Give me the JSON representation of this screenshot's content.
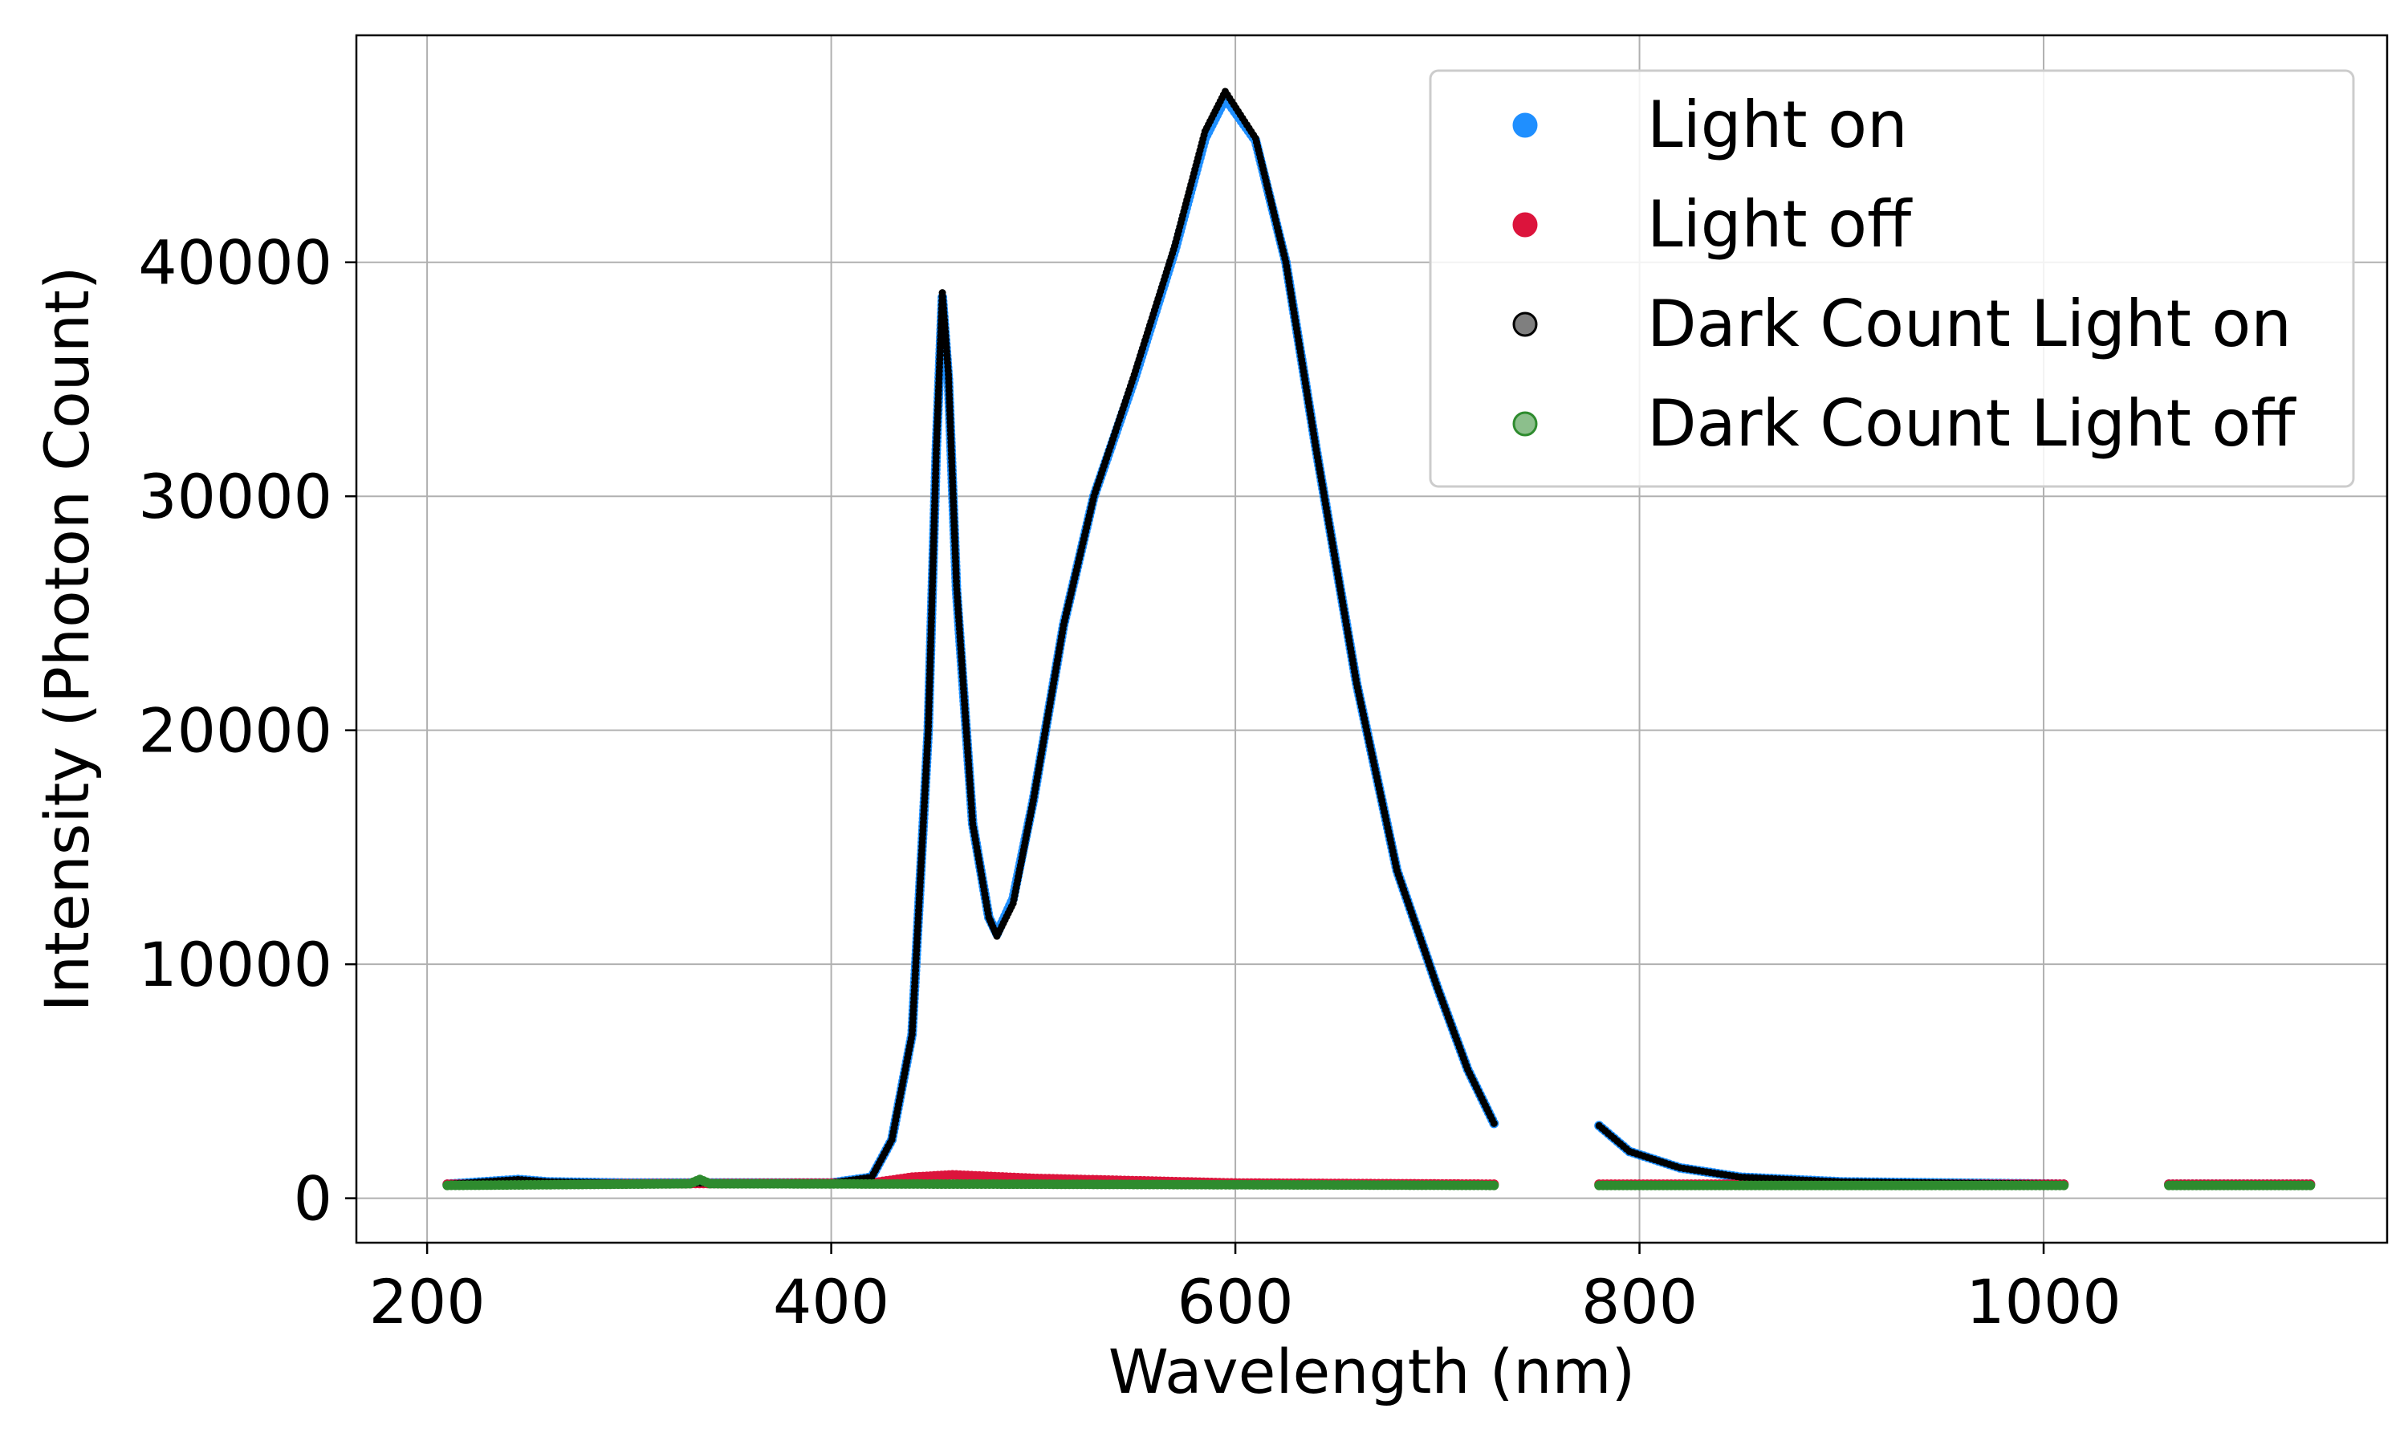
{
  "chart_data": {
    "type": "scatter",
    "xlabel": "Wavelength (nm)",
    "ylabel": "Intensity (Photon Count)",
    "xlim": [
      165,
      1170
    ],
    "ylim": [
      -1900,
      49700
    ],
    "xticks": [
      200,
      400,
      600,
      800,
      1000
    ],
    "yticks": [
      0,
      10000,
      20000,
      30000,
      40000
    ],
    "xtick_labels": [
      "200",
      "400",
      "600",
      "800",
      "1000"
    ],
    "ytick_labels": [
      "0",
      "10000",
      "20000",
      "30000",
      "40000"
    ],
    "grid": true,
    "legend_position": "top-right",
    "series": [
      {
        "name": "Light on",
        "color": "#1f8fff",
        "segments": [
          [
            [
              210,
              600
            ],
            [
              245,
              800
            ],
            [
              260,
              700
            ],
            [
              300,
              650
            ],
            [
              400,
              650
            ],
            [
              420,
              900
            ],
            [
              430,
              2500
            ],
            [
              440,
              7000
            ],
            [
              448,
              20000
            ],
            [
              452,
              32000
            ],
            [
              455,
              38500
            ],
            [
              458,
              35000
            ],
            [
              462,
              26000
            ],
            [
              470,
              16000
            ],
            [
              478,
              12000
            ],
            [
              482,
              11300
            ],
            [
              490,
              12800
            ],
            [
              500,
              17000
            ],
            [
              515,
              24500
            ],
            [
              530,
              30000
            ],
            [
              550,
              35000
            ],
            [
              570,
              40500
            ],
            [
              585,
              45300
            ],
            [
              595,
              47000
            ],
            [
              610,
              45200
            ],
            [
              625,
              40000
            ],
            [
              640,
              32000
            ],
            [
              660,
              22000
            ],
            [
              680,
              14000
            ],
            [
              700,
              9000
            ],
            [
              715,
              5500
            ],
            [
              728,
              3200
            ]
          ],
          [
            [
              780,
              3100
            ],
            [
              795,
              2000
            ],
            [
              820,
              1300
            ],
            [
              850,
              900
            ],
            [
              900,
              700
            ],
            [
              1010,
              600
            ]
          ],
          [
            [
              1062,
              600
            ],
            [
              1132,
              600
            ]
          ]
        ]
      },
      {
        "name": "Light off",
        "color": "#dc143c",
        "segments": [
          [
            [
              210,
              600
            ],
            [
              420,
              650
            ],
            [
              440,
              900
            ],
            [
              460,
              1000
            ],
            [
              500,
              850
            ],
            [
              600,
              650
            ],
            [
              728,
              600
            ]
          ],
          [
            [
              780,
              600
            ],
            [
              1010,
              600
            ]
          ],
          [
            [
              1062,
              600
            ],
            [
              1132,
              600
            ]
          ]
        ]
      },
      {
        "name": "Dark Count Light on",
        "color": "#000000",
        "segments": [
          [
            [
              210,
              600
            ],
            [
              245,
              800
            ],
            [
              260,
              700
            ],
            [
              300,
              650
            ],
            [
              400,
              650
            ],
            [
              420,
              900
            ],
            [
              430,
              2500
            ],
            [
              440,
              7000
            ],
            [
              448,
              20000
            ],
            [
              452,
              32000
            ],
            [
              455,
              38700
            ],
            [
              458,
              35200
            ],
            [
              462,
              26200
            ],
            [
              470,
              16000
            ],
            [
              478,
              12000
            ],
            [
              482,
              11200
            ],
            [
              490,
              12600
            ],
            [
              500,
              17000
            ],
            [
              515,
              24500
            ],
            [
              530,
              30000
            ],
            [
              550,
              35200
            ],
            [
              570,
              40700
            ],
            [
              585,
              45600
            ],
            [
              595,
              47300
            ],
            [
              610,
              45300
            ],
            [
              625,
              40000
            ],
            [
              640,
              32000
            ],
            [
              660,
              22000
            ],
            [
              680,
              14000
            ],
            [
              700,
              9000
            ],
            [
              715,
              5500
            ],
            [
              728,
              3200
            ]
          ],
          [
            [
              780,
              3100
            ],
            [
              795,
              2000
            ],
            [
              820,
              1300
            ],
            [
              850,
              900
            ],
            [
              900,
              700
            ],
            [
              1010,
              600
            ]
          ],
          [
            [
              1062,
              600
            ],
            [
              1132,
              600
            ]
          ]
        ]
      },
      {
        "name": "Dark Count Light off",
        "color": "#2e8b2e",
        "segments": [
          [
            [
              210,
              550
            ],
            [
              330,
              620
            ],
            [
              335,
              800
            ],
            [
              340,
              620
            ],
            [
              500,
              600
            ],
            [
              728,
              550
            ]
          ],
          [
            [
              780,
              550
            ],
            [
              1010,
              550
            ]
          ],
          [
            [
              1062,
              550
            ],
            [
              1132,
              550
            ]
          ]
        ]
      }
    ]
  }
}
